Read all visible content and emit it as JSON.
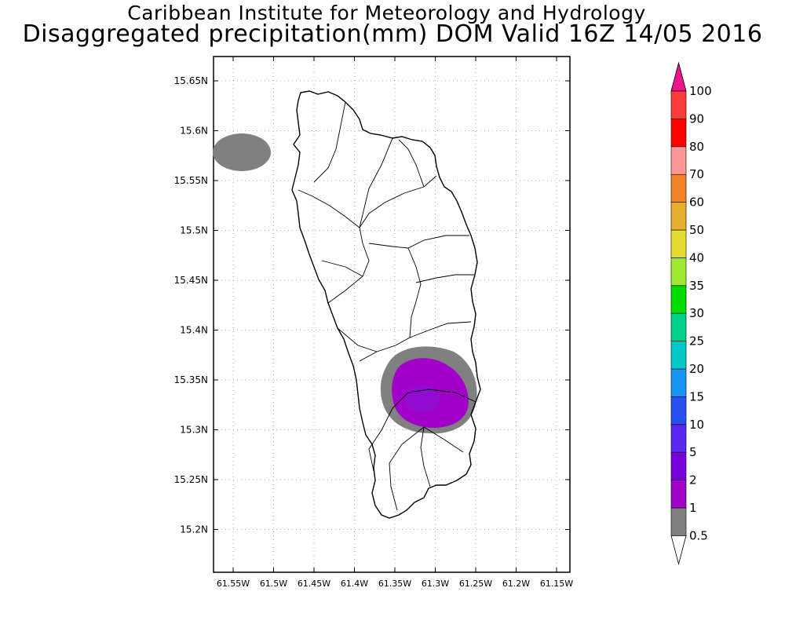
{
  "title": {
    "line1": "Caribbean Institute for Meteorology and Hydrology",
    "line2": "Disaggregated precipitation(mm) DOM Valid 16Z 14/05 2016"
  },
  "map": {
    "lat_ticks": [
      "15.65N",
      "15.6N",
      "15.55N",
      "15.5N",
      "15.45N",
      "15.4N",
      "15.35N",
      "15.3N",
      "15.25N",
      "15.2N"
    ],
    "lon_ticks": [
      "61.55W",
      "61.5W",
      "61.45W",
      "61.4W",
      "61.35W",
      "61.3W",
      "61.25W",
      "61.2W",
      "61.15W"
    ],
    "gridlines": true,
    "precip_areas": [
      {
        "name": "nw-offshore-cell",
        "category": "0.5-1"
      },
      {
        "name": "southeast-cell-outer",
        "category": "0.5-1"
      },
      {
        "name": "southeast-cell-core",
        "category": "1-2"
      }
    ]
  },
  "colorbar": {
    "levels": [
      "0.5",
      "1",
      "2",
      "5",
      "10",
      "15",
      "20",
      "25",
      "30",
      "35",
      "40",
      "50",
      "60",
      "70",
      "80",
      "90",
      "100"
    ],
    "colors": [
      "#808080",
      "#a000c8",
      "#7800dc",
      "#5a28f0",
      "#2850f0",
      "#1496f0",
      "#00c8c8",
      "#00d28c",
      "#00dc00",
      "#a0e632",
      "#e6dc32",
      "#e6af2d",
      "#f08228",
      "#fa9696",
      "#ff0000",
      "#fa3c3c"
    ],
    "under_color": "#ffffff",
    "over_color": "#f0148c"
  }
}
